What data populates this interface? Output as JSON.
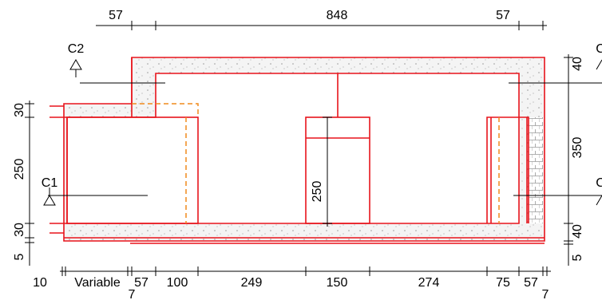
{
  "dimensions": {
    "top": [
      57,
      848,
      57
    ],
    "left": [
      30,
      250,
      30,
      5
    ],
    "right": [
      40,
      350,
      40,
      5
    ],
    "bottom": [
      10,
      "Variable",
      57,
      7,
      100,
      249,
      150,
      274,
      75,
      57,
      7
    ],
    "center": 250
  },
  "sections": [
    "C2",
    "C1",
    "C",
    "C"
  ]
}
